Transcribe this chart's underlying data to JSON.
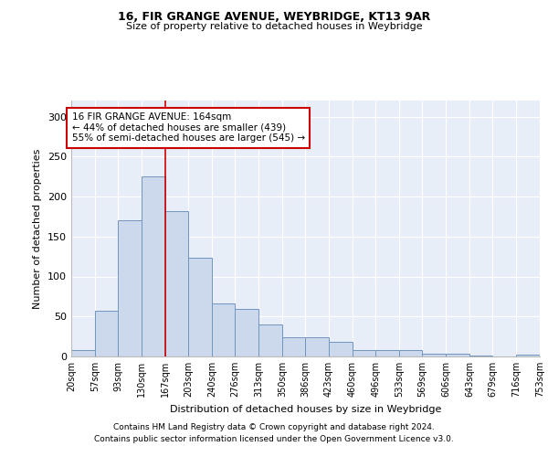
{
  "title1": "16, FIR GRANGE AVENUE, WEYBRIDGE, KT13 9AR",
  "title2": "Size of property relative to detached houses in Weybridge",
  "xlabel": "Distribution of detached houses by size in Weybridge",
  "ylabel": "Number of detached properties",
  "bar_color": "#ccd9ec",
  "bar_edge_color": "#7095c0",
  "bg_color": "#e8eef8",
  "grid_color": "#ffffff",
  "vline_x": 167,
  "vline_color": "#cc0000",
  "annotation_text": "16 FIR GRANGE AVENUE: 164sqm\n← 44% of detached houses are smaller (439)\n55% of semi-detached houses are larger (545) →",
  "annotation_box_color": "#ffffff",
  "annotation_box_edge": "#cc0000",
  "bin_edges": [
    20,
    57,
    93,
    130,
    167,
    203,
    240,
    276,
    313,
    350,
    386,
    423,
    460,
    496,
    533,
    569,
    606,
    643,
    679,
    716,
    753
  ],
  "bar_heights": [
    8,
    57,
    170,
    225,
    182,
    124,
    66,
    59,
    40,
    24,
    24,
    18,
    8,
    8,
    8,
    3,
    3,
    1,
    0,
    2
  ],
  "ylim": [
    0,
    320
  ],
  "yticks": [
    0,
    50,
    100,
    150,
    200,
    250,
    300
  ],
  "footer1": "Contains HM Land Registry data © Crown copyright and database right 2024.",
  "footer2": "Contains public sector information licensed under the Open Government Licence v3.0."
}
